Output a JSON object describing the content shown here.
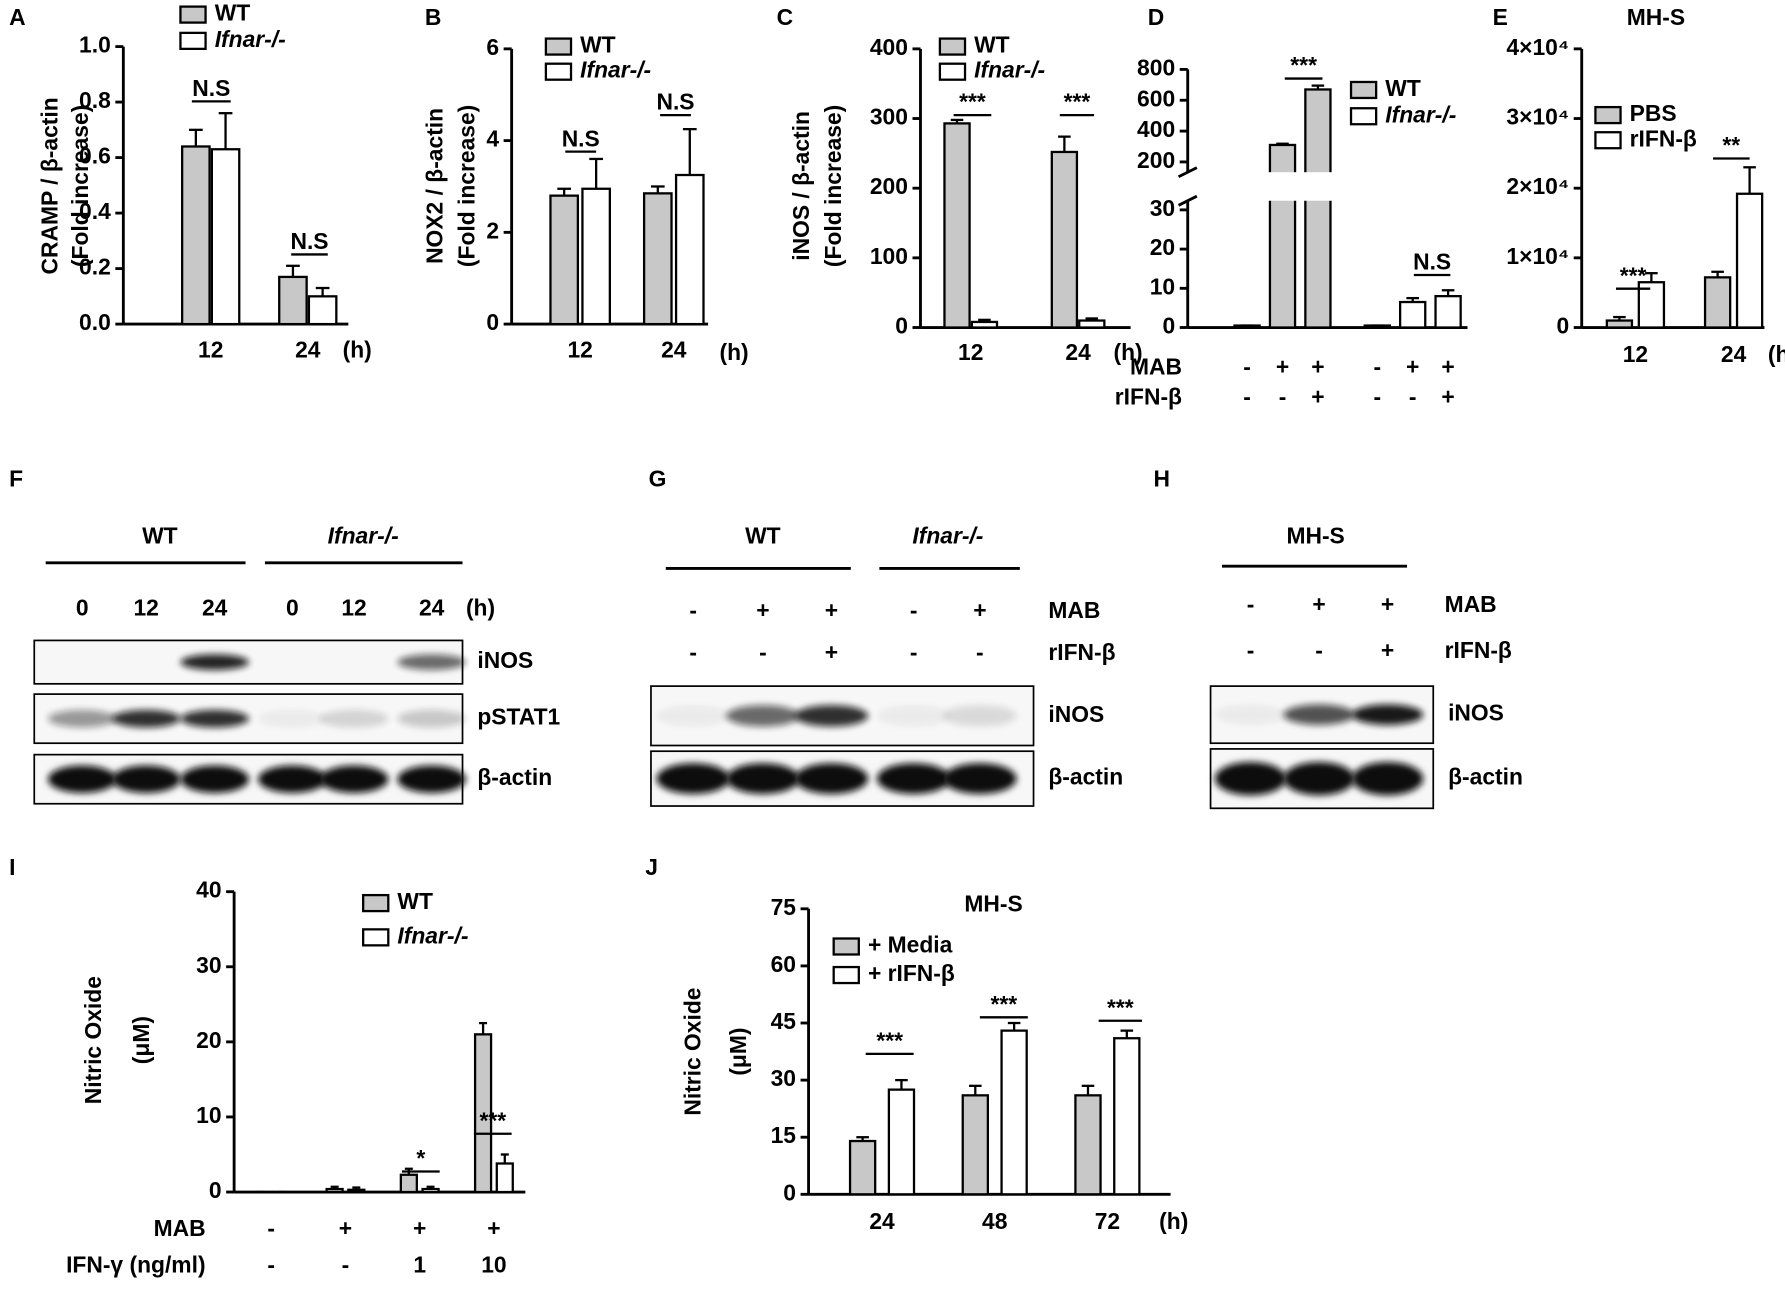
{
  "chart_data": [
    {
      "panel": "A",
      "type": "bar",
      "ylabel": [
        "CRAMP / β-actin",
        "(Fold increase)"
      ],
      "categories": [
        "12",
        "24"
      ],
      "xunit": "(h)",
      "series": [
        {
          "name": "WT",
          "color": "#c8c8c8",
          "values": [
            0.64,
            0.17
          ],
          "errors": [
            0.06,
            0.04
          ]
        },
        {
          "name": "Ifnar-/-",
          "color": "#ffffff",
          "values": [
            0.63,
            0.1
          ],
          "errors": [
            0.13,
            0.03
          ]
        }
      ],
      "ylim": [
        0,
        1
      ],
      "yticks": [
        {
          "value": 0,
          "label": "0.0"
        },
        0.2,
        0.4,
        0.6,
        0.8,
        {
          "value": 1,
          "label": "1.0"
        }
      ],
      "annotations": [
        "N.S",
        "N.S"
      ]
    },
    {
      "panel": "B",
      "type": "bar",
      "ylabel": [
        "NOX2 / β-actin",
        "(Fold increase)"
      ],
      "categories": [
        "12",
        "24"
      ],
      "xunit": "(h)",
      "series": [
        {
          "name": "WT",
          "color": "#c8c8c8",
          "values": [
            2.8,
            2.85
          ],
          "errors": [
            0.15,
            0.15
          ]
        },
        {
          "name": "Ifnar-/-",
          "color": "#ffffff",
          "values": [
            2.95,
            3.25
          ],
          "errors": [
            0.65,
            1.0
          ]
        }
      ],
      "ylim": [
        0,
        6
      ],
      "yticks": [
        0,
        2,
        4,
        6
      ],
      "annotations": [
        "N.S",
        "N.S"
      ]
    },
    {
      "panel": "C",
      "type": "bar",
      "ylabel": [
        "iNOS / β-actin",
        "(Fold increase)"
      ],
      "categories": [
        "12",
        "24"
      ],
      "xunit": "(h)",
      "series": [
        {
          "name": "WT",
          "color": "#c8c8c8",
          "values": [
            293,
            252
          ],
          "errors": [
            5,
            22
          ]
        },
        {
          "name": "Ifnar-/-",
          "color": "#ffffff",
          "values": [
            8,
            10
          ],
          "errors": [
            3,
            3
          ]
        }
      ],
      "ylim": [
        0,
        400
      ],
      "yticks": [
        0,
        100,
        200,
        300,
        400
      ],
      "annotations": [
        "***",
        "***"
      ]
    },
    {
      "panel": "D",
      "type": "bar",
      "group_by": "series",
      "series": [
        {
          "name": "WT",
          "color": "#c8c8c8",
          "values": [
            0.5,
            310,
            670
          ],
          "errors": [
            0,
            8,
            25
          ]
        },
        {
          "name": "Ifnar-/-",
          "color": "#ffffff",
          "values": [
            0.5,
            6.5,
            8
          ],
          "errors": [
            0,
            1,
            1.5
          ]
        }
      ],
      "conditions": [
        {
          "name": "MAB",
          "values": [
            "-",
            "+",
            "+",
            "-",
            "+",
            "+"
          ]
        },
        {
          "name": "rIFN-β",
          "values": [
            "-",
            "-",
            "+",
            "-",
            "-",
            "+"
          ]
        }
      ],
      "ylim": [
        0,
        800
      ],
      "ybreak": [
        30,
        200
      ],
      "yticks": [
        0,
        10,
        20,
        30,
        200,
        400,
        600,
        800
      ],
      "annotations": [
        "***",
        "N.S"
      ]
    },
    {
      "panel": "E",
      "type": "bar",
      "title": "MH-S",
      "categories": [
        "12",
        "24"
      ],
      "xunit": "(h)",
      "series": [
        {
          "name": "PBS",
          "color": "#c8c8c8",
          "values": [
            1000,
            7200
          ],
          "errors": [
            500,
            800
          ]
        },
        {
          "name": "rIFN-β",
          "color": "#ffffff",
          "values": [
            6500,
            19200
          ],
          "errors": [
            1300,
            3800
          ]
        }
      ],
      "ylim": [
        0,
        40000
      ],
      "yticks": [
        0,
        {
          "value": 10000,
          "label": "1×10⁴"
        },
        {
          "value": 20000,
          "label": "2×10⁴"
        },
        {
          "value": 30000,
          "label": "3×10⁴"
        },
        {
          "value": 40000,
          "label": "4×10⁴"
        }
      ],
      "annotations": [
        "***",
        "**"
      ]
    },
    {
      "panel": "I",
      "type": "bar",
      "ylabel": [
        "Nitric Oxide",
        "(μM)"
      ],
      "series": [
        {
          "name": "WT",
          "color": "#c8c8c8",
          "values": [
            0,
            0.4,
            2.3,
            21
          ],
          "errors": [
            0,
            0.3,
            0.8,
            1.5
          ]
        },
        {
          "name": "Ifnar-/-",
          "color": "#ffffff",
          "values": [
            0,
            0.3,
            0.4,
            3.8
          ],
          "errors": [
            0,
            0.3,
            0.3,
            1.2
          ]
        }
      ],
      "conditions": [
        {
          "name": "MAB",
          "values": [
            "-",
            "+",
            "+",
            "+"
          ]
        },
        {
          "name": "IFN-γ (ng/ml)",
          "values": [
            "-",
            "-",
            "1",
            "10"
          ]
        }
      ],
      "ylim": [
        0,
        40
      ],
      "yticks": [
        0,
        10,
        20,
        30,
        40
      ],
      "annotations": [
        "*",
        "***"
      ]
    },
    {
      "panel": "J",
      "type": "bar",
      "title": "MH-S",
      "ylabel": [
        "Nitric Oxide",
        "(μM)"
      ],
      "categories": [
        "24",
        "48",
        "72"
      ],
      "xunit": "(h)",
      "series": [
        {
          "name": "+ Media",
          "color": "#c8c8c8",
          "values": [
            14,
            26,
            26
          ],
          "errors": [
            1,
            2.5,
            2.5
          ]
        },
        {
          "name": "+ rIFN-β",
          "color": "#ffffff",
          "values": [
            27.5,
            43,
            41
          ],
          "errors": [
            2.5,
            2,
            2
          ]
        }
      ],
      "ylim": [
        0,
        75
      ],
      "yticks": [
        0,
        15,
        30,
        45,
        60,
        75
      ],
      "annotations": [
        "***",
        "***",
        "***"
      ]
    }
  ],
  "blots": [
    {
      "panel": "F",
      "groups": [
        "WT",
        "Ifnar-/-"
      ],
      "lanes": [
        "0",
        "12",
        "24",
        "0",
        "12",
        "24"
      ],
      "lane_unit": "(h)",
      "rows": [
        "iNOS",
        "pSTAT1",
        "β-actin"
      ]
    },
    {
      "panel": "G",
      "groups": [
        "WT",
        "Ifnar-/-"
      ],
      "conditions": [
        {
          "name": "MAB",
          "values": [
            "-",
            "+",
            "+",
            "-",
            "+"
          ]
        },
        {
          "name": "rIFN-β",
          "values": [
            "-",
            "-",
            "+",
            "-",
            "-"
          ]
        }
      ],
      "rows": [
        "iNOS",
        "β-actin"
      ]
    },
    {
      "panel": "H",
      "groups": [
        "MH-S"
      ],
      "conditions": [
        {
          "name": "MAB",
          "values": [
            "-",
            "+",
            "+"
          ]
        },
        {
          "name": "rIFN-β",
          "values": [
            "-",
            "-",
            "+"
          ]
        }
      ],
      "rows": [
        "iNOS",
        "β-actin"
      ]
    }
  ]
}
